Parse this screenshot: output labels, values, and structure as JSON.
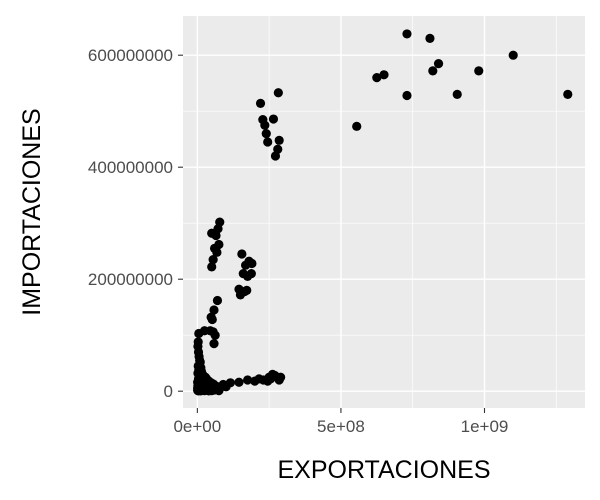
{
  "chart_data": {
    "type": "scatter",
    "title": "",
    "xlabel": "EXPORTACIONES",
    "ylabel": "IMPORTACIONES",
    "xlim": [
      -50000000,
      1350000000
    ],
    "ylim": [
      -30000000,
      670000000
    ],
    "x_ticks": [
      {
        "value": 0,
        "label": "0e+00"
      },
      {
        "value": 500000000,
        "label": "5e+08"
      },
      {
        "value": 1000000000,
        "label": "1e+09"
      }
    ],
    "y_ticks": [
      {
        "value": 0,
        "label": "0"
      },
      {
        "value": 200000000,
        "label": "200000000"
      },
      {
        "value": 400000000,
        "label": "400000000"
      },
      {
        "value": 600000000,
        "label": "600000000"
      }
    ],
    "grid": true,
    "colors": {
      "panel": "#ebebeb",
      "grid": "#ffffff",
      "point": "#000000"
    },
    "points": [
      [
        730000000,
        638000000
      ],
      [
        810000000,
        630000000
      ],
      [
        1100000000,
        600000000
      ],
      [
        840000000,
        585000000
      ],
      [
        980000000,
        572000000
      ],
      [
        820000000,
        572000000
      ],
      [
        650000000,
        565000000
      ],
      [
        625000000,
        560000000
      ],
      [
        730000000,
        528000000
      ],
      [
        905000000,
        530000000
      ],
      [
        1290000000,
        530000000
      ],
      [
        555000000,
        473000000
      ],
      [
        282000000,
        533000000
      ],
      [
        220000000,
        514000000
      ],
      [
        265000000,
        486000000
      ],
      [
        228000000,
        485000000
      ],
      [
        235000000,
        475000000
      ],
      [
        240000000,
        460000000
      ],
      [
        285000000,
        448000000
      ],
      [
        245000000,
        445000000
      ],
      [
        280000000,
        432000000
      ],
      [
        272000000,
        420000000
      ],
      [
        78000000,
        302000000
      ],
      [
        72000000,
        290000000
      ],
      [
        50000000,
        282000000
      ],
      [
        65000000,
        278000000
      ],
      [
        75000000,
        262000000
      ],
      [
        60000000,
        255000000
      ],
      [
        68000000,
        248000000
      ],
      [
        55000000,
        235000000
      ],
      [
        50000000,
        222000000
      ],
      [
        155000000,
        245000000
      ],
      [
        180000000,
        232000000
      ],
      [
        168000000,
        225000000
      ],
      [
        190000000,
        228000000
      ],
      [
        160000000,
        210000000
      ],
      [
        188000000,
        210000000
      ],
      [
        175000000,
        205000000
      ],
      [
        145000000,
        182000000
      ],
      [
        165000000,
        178000000
      ],
      [
        150000000,
        172000000
      ],
      [
        172000000,
        180000000
      ],
      [
        70000000,
        162000000
      ],
      [
        58000000,
        145000000
      ],
      [
        48000000,
        132000000
      ],
      [
        52000000,
        128000000
      ],
      [
        25000000,
        108000000
      ],
      [
        45000000,
        108000000
      ],
      [
        55000000,
        106000000
      ],
      [
        5000000,
        103000000
      ],
      [
        62000000,
        100000000
      ],
      [
        3000000,
        88000000
      ],
      [
        58000000,
        85000000
      ],
      [
        2000000,
        80000000
      ],
      [
        4000000,
        70000000
      ],
      [
        6000000,
        62000000
      ],
      [
        8000000,
        55000000
      ],
      [
        10000000,
        52000000
      ],
      [
        3000000,
        45000000
      ],
      [
        12000000,
        42000000
      ],
      [
        5000000,
        38000000
      ],
      [
        14000000,
        36000000
      ],
      [
        2000000,
        32000000
      ],
      [
        18000000,
        30000000
      ],
      [
        6000000,
        28000000
      ],
      [
        22000000,
        27000000
      ],
      [
        28000000,
        25000000
      ],
      [
        4000000,
        22000000
      ],
      [
        10000000,
        22000000
      ],
      [
        32000000,
        22000000
      ],
      [
        15000000,
        20000000
      ],
      [
        40000000,
        18000000
      ],
      [
        1000000,
        16000000
      ],
      [
        20000000,
        16000000
      ],
      [
        48000000,
        15000000
      ],
      [
        8000000,
        14000000
      ],
      [
        26000000,
        13000000
      ],
      [
        55000000,
        13000000
      ],
      [
        2000000,
        10000000
      ],
      [
        12000000,
        10000000
      ],
      [
        35000000,
        10000000
      ],
      [
        62000000,
        10000000
      ],
      [
        5000000,
        8000000
      ],
      [
        18000000,
        8000000
      ],
      [
        42000000,
        8000000
      ],
      [
        70000000,
        8000000
      ],
      [
        1000000,
        6000000
      ],
      [
        10000000,
        6000000
      ],
      [
        30000000,
        6000000
      ],
      [
        52000000,
        6000000
      ],
      [
        80000000,
        6000000
      ],
      [
        3000000,
        4000000
      ],
      [
        22000000,
        4000000
      ],
      [
        45000000,
        4000000
      ],
      [
        65000000,
        4000000
      ],
      [
        1000000,
        2000000
      ],
      [
        8000000,
        2000000
      ],
      [
        15000000,
        2000000
      ],
      [
        35000000,
        2000000
      ],
      [
        58000000,
        2000000
      ],
      [
        2000000,
        1000000
      ],
      [
        25000000,
        1000000
      ],
      [
        50000000,
        1000000
      ],
      [
        75000000,
        1000000
      ],
      [
        4000000,
        500000
      ],
      [
        12000000,
        500000
      ],
      [
        40000000,
        500000
      ],
      [
        90000000,
        12000000
      ],
      [
        100000000,
        8000000
      ],
      [
        115000000,
        15000000
      ],
      [
        145000000,
        16000000
      ],
      [
        175000000,
        20000000
      ],
      [
        215000000,
        22000000
      ],
      [
        230000000,
        20000000
      ],
      [
        250000000,
        25000000
      ],
      [
        262000000,
        30000000
      ],
      [
        270000000,
        28000000
      ],
      [
        255000000,
        22000000
      ],
      [
        285000000,
        20000000
      ],
      [
        290000000,
        25000000
      ],
      [
        245000000,
        18000000
      ],
      [
        200000000,
        18000000
      ]
    ]
  }
}
